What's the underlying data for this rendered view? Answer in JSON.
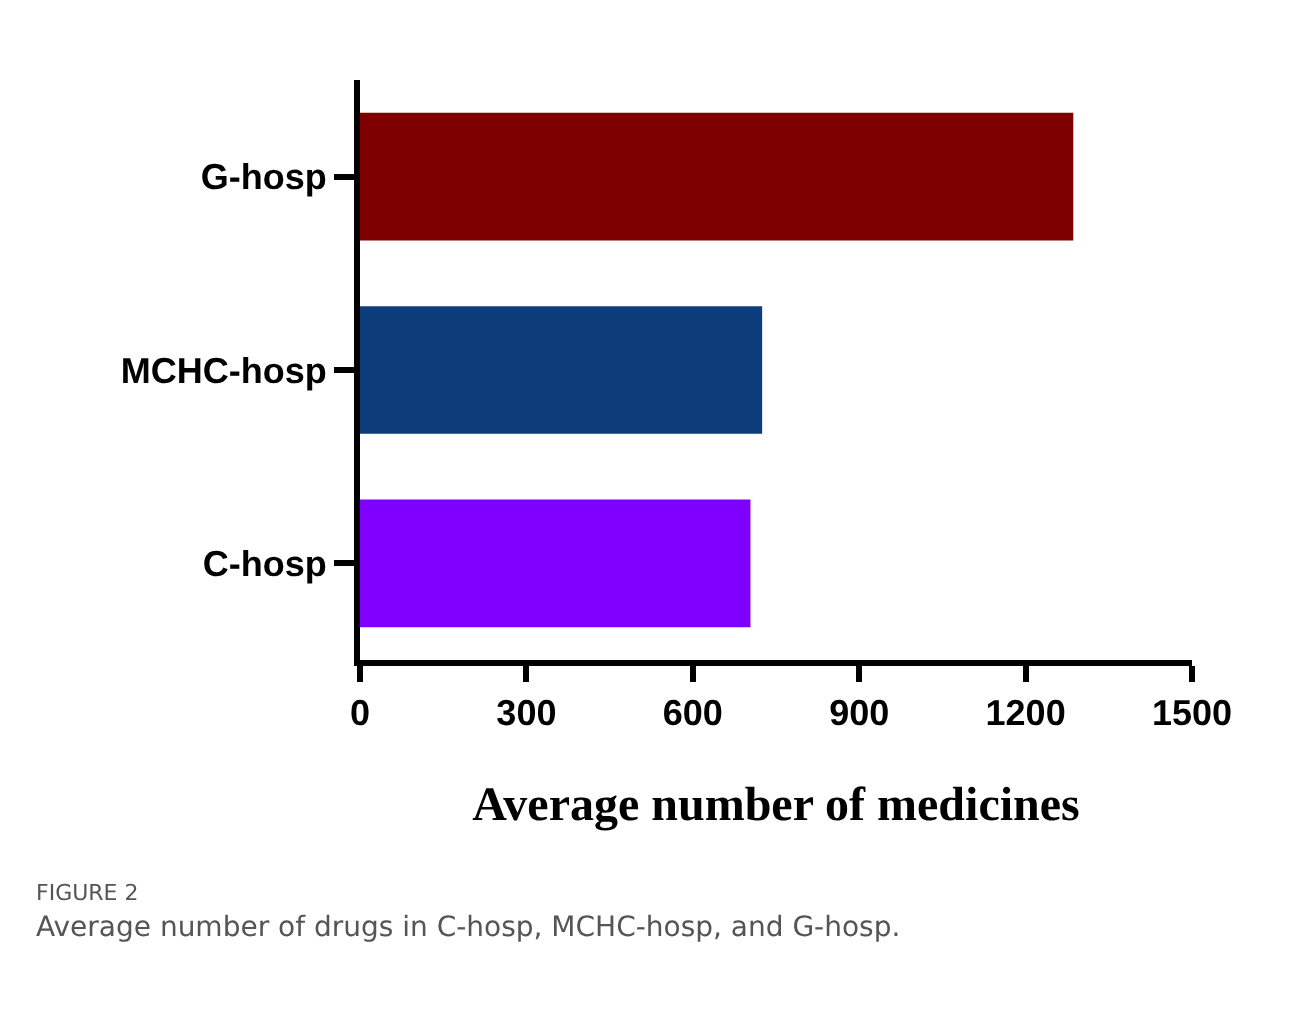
{
  "chart_data": {
    "type": "bar",
    "orientation": "horizontal",
    "categories": [
      "G-hosp",
      "MCHC-hosp",
      "C-hosp"
    ],
    "values": [
      1286,
      725,
      704
    ],
    "colors": [
      "#7f0000",
      "#0d3c7a",
      "#7f00ff"
    ],
    "xlim": [
      0,
      1500
    ],
    "xticks": [
      0,
      300,
      600,
      900,
      1200,
      1500
    ],
    "xlabel": "Average number of medicines",
    "grid": false,
    "annotations": [
      "FIGURE 2",
      "Average number of drugs in C-hosp, MCHC-hosp, and G-hosp."
    ]
  }
}
